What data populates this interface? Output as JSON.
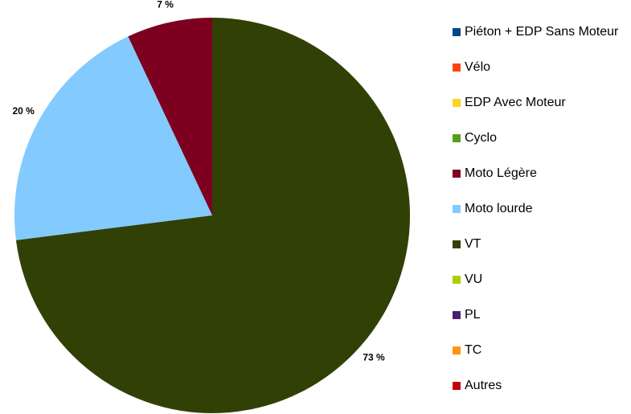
{
  "chart_data": {
    "type": "pie",
    "categories": [
      "Piéton + EDP Sans Moteur",
      "Vélo",
      "EDP Avec Moteur",
      "Cyclo",
      "Moto Légère",
      "Moto lourde",
      "VT",
      "VU",
      "PL",
      "TC",
      "Autres"
    ],
    "values": [
      0,
      0,
      0,
      0,
      7,
      20,
      73,
      0,
      0,
      0,
      0
    ],
    "value_labels": [
      null,
      null,
      null,
      null,
      "7 %",
      "20 %",
      "73 %",
      null,
      null,
      null,
      null
    ],
    "colors": [
      "#004586",
      "#ff420e",
      "#ffd320",
      "#579d1c",
      "#7e0021",
      "#83caff",
      "#314004",
      "#aecf00",
      "#4b1f6f",
      "#ff950e",
      "#c5000b"
    ],
    "legend": "right"
  }
}
